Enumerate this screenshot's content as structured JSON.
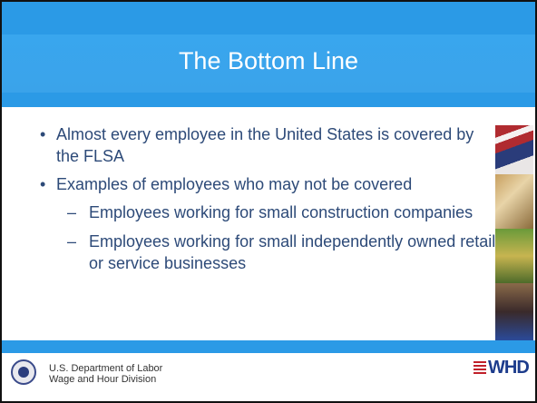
{
  "slide": {
    "title": "The Bottom Line",
    "bullets": [
      {
        "text": "Almost every employee in the United States is covered by the FLSA",
        "sub": []
      },
      {
        "text": "Examples of employees who may not be covered",
        "sub": [
          "Employees working for small construction companies",
          "Employees working for small independently owned retail or service businesses"
        ]
      }
    ]
  },
  "footer": {
    "lines": [
      "U.S. Department of Labor",
      "Wage and Hour Division"
    ],
    "logo": "WHD"
  }
}
